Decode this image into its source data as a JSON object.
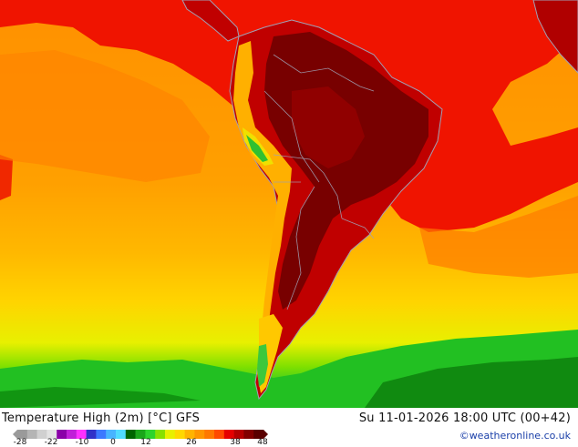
{
  "header": {
    "title": "Temperature High (2m) [°C] GFS",
    "datetime": "Su 11-01-2026 18:00 UTC (00+42)",
    "credit": "©weatheronline.co.uk"
  },
  "legend": {
    "ticks": [
      "-28",
      "-22",
      "-10",
      "0",
      "12",
      "26",
      "38",
      "48"
    ],
    "colors": [
      "#9a9a9a",
      "#b4b4b4",
      "#d0d0d0",
      "#e3e3e3",
      "#8a00a8",
      "#c020d8",
      "#ff30ff",
      "#3030c8",
      "#3c78ff",
      "#48b4ff",
      "#50dcff",
      "#006400",
      "#1aa61a",
      "#2cd42c",
      "#88e000",
      "#e8f000",
      "#ffd800",
      "#ffb400",
      "#ff9600",
      "#ff7800",
      "#ff4a00",
      "#e60000",
      "#b40000",
      "#820000",
      "#5a0000"
    ]
  },
  "palette": {
    "ocean_warm": "#ff9400",
    "ocean_orange": "#ffa800",
    "ocean_yellow": "#ffd000",
    "ocean_lemon": "#f0f000",
    "ocean_green": "#28c828",
    "ocean_darkgreen": "#108010",
    "red": "#f01000",
    "land_hot": "#b00000",
    "land_hottest": "#780000",
    "border": "#a0a0b4"
  }
}
